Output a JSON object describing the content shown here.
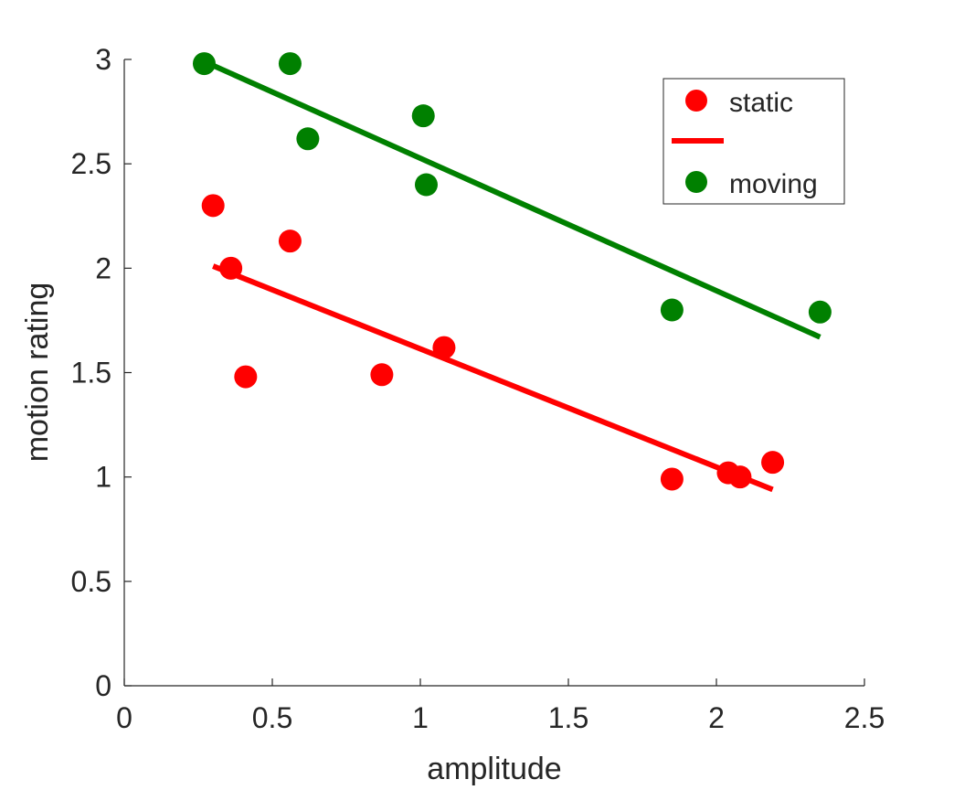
{
  "chart_data": {
    "type": "scatter",
    "xlabel": "amplitude",
    "ylabel": "motion rating",
    "xlim": [
      0,
      2.5
    ],
    "ylim": [
      0,
      3
    ],
    "x_ticks": [
      "0",
      "0.5",
      "1",
      "1.5",
      "2",
      "2.5"
    ],
    "y_ticks": [
      "0",
      "0.5",
      "1",
      "1.5",
      "2",
      "2.5",
      "3"
    ],
    "grid": false,
    "legend_position": "top-right",
    "legend": {
      "entries": [
        "static",
        "",
        "moving"
      ]
    },
    "series": [
      {
        "name": "static",
        "color": "#ff0000",
        "points": [
          {
            "x": 0.3,
            "y": 2.3
          },
          {
            "x": 0.36,
            "y": 2.0
          },
          {
            "x": 0.41,
            "y": 1.48
          },
          {
            "x": 0.56,
            "y": 2.13
          },
          {
            "x": 0.87,
            "y": 1.49
          },
          {
            "x": 1.08,
            "y": 1.62
          },
          {
            "x": 1.85,
            "y": 0.99
          },
          {
            "x": 2.04,
            "y": 1.02
          },
          {
            "x": 2.08,
            "y": 1.0
          },
          {
            "x": 2.19,
            "y": 1.07
          }
        ],
        "fit": {
          "x": [
            0.3,
            2.19
          ],
          "y": [
            2.01,
            0.94
          ]
        }
      },
      {
        "name": "moving",
        "color": "#008000",
        "points": [
          {
            "x": 0.27,
            "y": 2.98
          },
          {
            "x": 0.56,
            "y": 2.98
          },
          {
            "x": 0.62,
            "y": 2.62
          },
          {
            "x": 1.01,
            "y": 2.73
          },
          {
            "x": 1.02,
            "y": 2.4
          },
          {
            "x": 1.85,
            "y": 1.8
          },
          {
            "x": 2.35,
            "y": 1.79
          }
        ],
        "fit": {
          "x": [
            0.27,
            2.35
          ],
          "y": [
            2.99,
            1.67
          ]
        }
      }
    ]
  }
}
